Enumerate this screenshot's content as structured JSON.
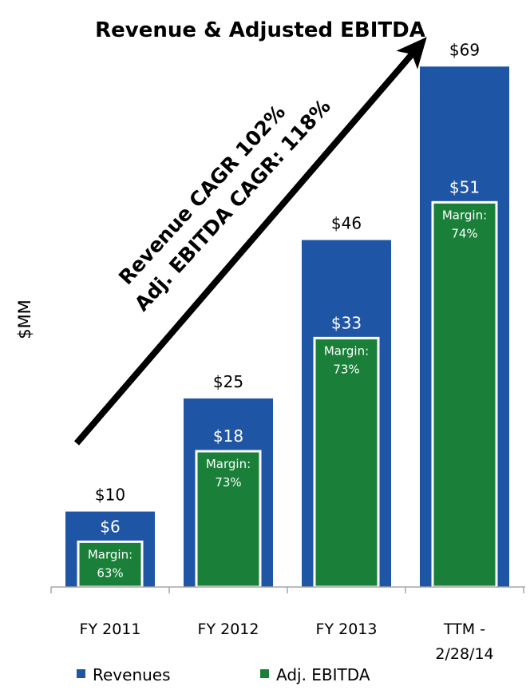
{
  "chart_data": {
    "type": "bar",
    "title": "Revenue & Adjusted EBITDA",
    "ylabel": "$MM",
    "xlabel": "",
    "categories": [
      "FY 2011",
      "FY 2012",
      "FY 2013",
      [
        "TTM -",
        "2/28/14"
      ]
    ],
    "ylim": [
      0,
      72
    ],
    "series": [
      {
        "name": "Revenues",
        "color": "#1F55A5",
        "values": [
          10,
          25,
          46,
          69
        ],
        "labels": [
          "$10",
          "$25",
          "$46",
          "$69"
        ]
      },
      {
        "name": "Adj. EBITDA",
        "color": "#1A8039",
        "values": [
          6,
          18,
          33,
          51
        ],
        "labels": [
          "$6",
          "$18",
          "$33",
          "$51"
        ]
      }
    ],
    "margin_prefix": "Margin:",
    "margins": [
      "63%",
      "73%",
      "73%",
      "74%"
    ],
    "annotation": [
      "Revenue CAGR 102%",
      "Adj. EBITDA CAGR: 118%"
    ],
    "legend_position": "bottom",
    "grid": false
  }
}
